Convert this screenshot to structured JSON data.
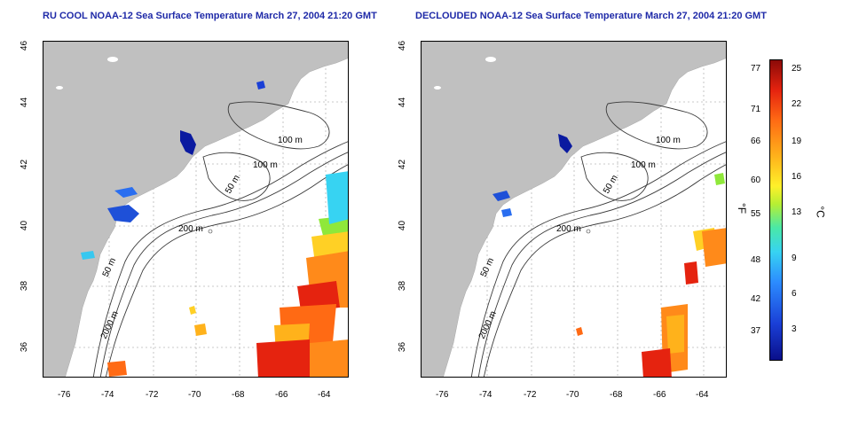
{
  "panels": [
    {
      "title": "RU COOL NOAA-12 Sea Surface Temperature March 27, 2004 21:20 GMT",
      "contour_labels": [
        "100 m",
        "100 m",
        "50 m",
        "200 m",
        "50 m",
        "2000 m"
      ]
    },
    {
      "title": "DECLOUDED NOAA-12 Sea Surface Temperature March 27, 2004 21:20 GMT",
      "contour_labels": [
        "100 m",
        "100 m",
        "50 m",
        "200 m",
        "50 m",
        "2000 m"
      ]
    }
  ],
  "axes": {
    "x_ticks": [
      "-76",
      "-74",
      "-72",
      "-70",
      "-68",
      "-66",
      "-64"
    ],
    "y_ticks": [
      "46",
      "44",
      "42",
      "40",
      "38",
      "36"
    ]
  },
  "colorbar": {
    "fahrenheit_ticks": [
      "77",
      "71",
      "66",
      "60",
      "55",
      "48",
      "42",
      "37"
    ],
    "celsius_ticks": [
      "25",
      "22",
      "19",
      "16",
      "13",
      "9",
      "6",
      "3"
    ],
    "fahrenheit_unit": "°F",
    "celsius_unit": "°C"
  },
  "colors": {
    "land": "#c0c0c0",
    "title": "#1f2aa8",
    "cold": "#0a0f8a",
    "warm": "#e5230f"
  }
}
